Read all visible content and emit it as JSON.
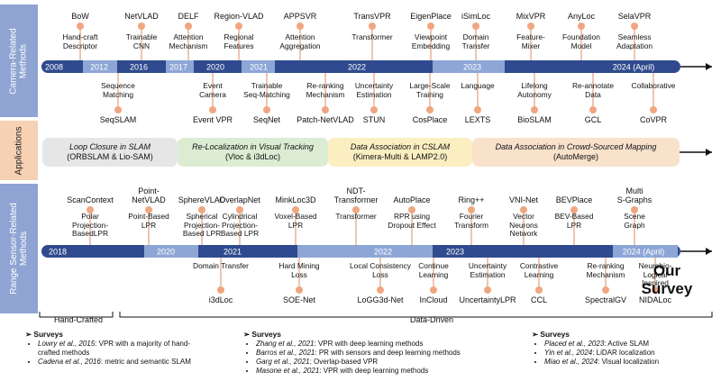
{
  "side_labels": {
    "camera": "Camera-Related\nMethods",
    "applications": "Applications",
    "range": "Range Sensor-Related\nMethods"
  },
  "camera": {
    "years": [
      "2008",
      "2012",
      "2016",
      "2017",
      "2020",
      "2021",
      "2022",
      "2023",
      "2024 (April)"
    ],
    "top_items": [
      {
        "name": "BoW",
        "desc": "Hand-craft\nDescriptor"
      },
      {
        "name": "NetVLAD",
        "desc": "Trainable\nCNN"
      },
      {
        "name": "DELF",
        "desc": "Attention\nMechanism"
      },
      {
        "name": "Region-VLAD",
        "desc": "Regional\nFeatures"
      },
      {
        "name": "APPSVR",
        "desc": "Attention\nAggregation"
      },
      {
        "name": "TransVPR",
        "desc": "Transformer"
      },
      {
        "name": "EigenPlace",
        "desc": "Viewpoint\nEmbedding"
      },
      {
        "name": "iSimLoc",
        "desc": "Domain\nTransfer"
      },
      {
        "name": "MixVPR",
        "desc": "Feature-\nMixer"
      },
      {
        "name": "AnyLoc",
        "desc": "Foundation\nModel"
      },
      {
        "name": "SelaVPR",
        "desc": "Seamless\nAdaptation"
      }
    ],
    "bottom_items": [
      {
        "name": "SeqSLAM",
        "desc": "Sequence\nMatching"
      },
      {
        "name": "Event VPR",
        "desc": "Event\nCamera"
      },
      {
        "name": "SeqNet",
        "desc": "Trainable\nSeq-Matching"
      },
      {
        "name": "Patch-NetVLAD",
        "desc": "Re-ranking\nMechanism"
      },
      {
        "name": "STUN",
        "desc": "Uncertainty\nEstimation"
      },
      {
        "name": "CosPlace",
        "desc": "Large-Scale\nTraining"
      },
      {
        "name": "LEXTS",
        "desc": "Language"
      },
      {
        "name": "BioSLAM",
        "desc": "Lifelong\nAutonomy"
      },
      {
        "name": "GCL",
        "desc": "Re-annotate\nData"
      },
      {
        "name": "CoVPR",
        "desc": "Collaborative"
      }
    ]
  },
  "applications": [
    {
      "title": "Loop Closure in SLAM",
      "sub": "(ORBSLAM & Lio-SAM)",
      "color": "#e6e6e6"
    },
    {
      "title": "Re-Localization in Visual Tracking",
      "sub": "(Vloc & i3dLoc)",
      "color": "#dcecd3"
    },
    {
      "title": "Data Association in CSLAM",
      "sub": "(Kimera-Multi & LAMP2.0)",
      "color": "#fbefc2"
    },
    {
      "title": "Data Association in Crowd-Sourced Mapping",
      "sub": "(AutoMerge)",
      "color": "#f8e2cc"
    }
  ],
  "range": {
    "years": [
      "2018",
      "2020",
      "2021",
      "2022",
      "2023",
      "2024 (April)"
    ],
    "top_items": [
      {
        "name": "ScanContext",
        "desc": "Polar\nProjection-\nBasedLPR"
      },
      {
        "name": "Point-\nNetVLAD",
        "desc": "Point-Based\nLPR"
      },
      {
        "name": "SphereVLAD",
        "desc": "Spherical\nProjection-\nBased LPR"
      },
      {
        "name": "OverlapNet",
        "desc": "Cylindrical\nProjection-\nBased LPR"
      },
      {
        "name": "MinkLoc3D",
        "desc": "Voxel-Based\nLPR"
      },
      {
        "name": "NDT-\nTransformer",
        "desc": "Transformer"
      },
      {
        "name": "AutoPlace",
        "desc": "RPR using\nDropout Effect"
      },
      {
        "name": "Ring++",
        "desc": "Fourier\nTransform"
      },
      {
        "name": "VNI-Net",
        "desc": "Vector\nNeurons\nNetwork"
      },
      {
        "name": "BEVPlace",
        "desc": "BEV-Based\nLPR"
      },
      {
        "name": "Multi\nS-Graphs",
        "desc": "Scene\nGraph"
      }
    ],
    "bottom_items": [
      {
        "name": "i3dLoc",
        "desc": "Domain Transfer"
      },
      {
        "name": "SOE-Net",
        "desc": "Hard Mining\nLoss"
      },
      {
        "name": "LoGG3d-Net",
        "desc": "Local Consistency\nLoss"
      },
      {
        "name": "InCloud",
        "desc": "Continue\nLearning"
      },
      {
        "name": "UncertaintyLPR",
        "desc": "Uncertainty\nEstimation"
      },
      {
        "name": "CCL",
        "desc": "Contrastive\nLearning"
      },
      {
        "name": "SpectralGV",
        "desc": "Re-ranking\nMechanism"
      },
      {
        "name": "NIDALoc",
        "desc": "Neurobio-\nLogical\nInspired"
      }
    ]
  },
  "our_survey": "Our\nSurvey",
  "eras": {
    "hand": "Hand-Crafted",
    "data": "Data-Driven"
  },
  "surveys": [
    {
      "heading": "Surveys",
      "items": [
        {
          "author": "Lowry et al., 2015",
          "text": ": VPR with a majority of hand-"
        },
        {
          "author": "",
          "text": "crafted methods"
        },
        {
          "author": "Cadena et al., 2016",
          "text": ": metric and semantic SLAM"
        }
      ]
    },
    {
      "heading": "Surveys",
      "items": [
        {
          "author": "Zhang et al., 2021",
          "text": ": VPR with deep learning methods"
        },
        {
          "author": "Barros et al., 2021",
          "text": ": PR with sensors and deep learning methods"
        },
        {
          "author": "Garg et al., 2021",
          "text": ": Overlap-based VPR"
        },
        {
          "author": "Masone et al., 2021",
          "text": ": VPR with deep learning methods"
        }
      ]
    },
    {
      "heading": "Surveys",
      "items": [
        {
          "author": "Placed et al., 2023",
          "text": ": Active SLAM"
        },
        {
          "author": "Yin et al., 2024",
          "text": ": LiDAR localization"
        },
        {
          "author": "Miao et al., 2024",
          "text": ": Visual localization"
        }
      ]
    }
  ],
  "colors": {
    "timeline_dark": "#2f4a8e",
    "timeline_light": "#8da6d6",
    "side_band": "#8fa4d3",
    "node": "#f0a680",
    "stem": "#e9b79c"
  }
}
